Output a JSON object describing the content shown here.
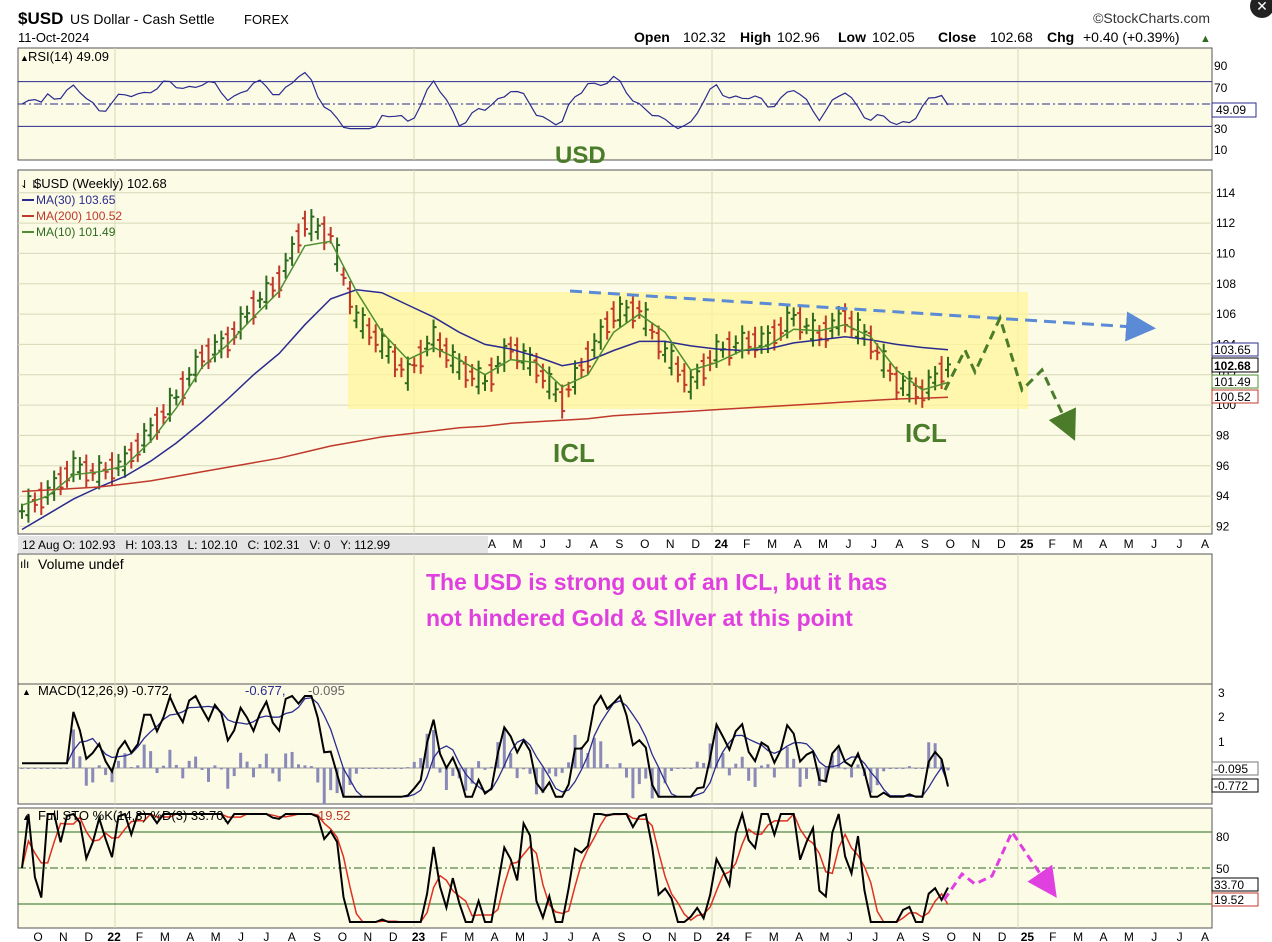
{
  "header": {
    "symbol": "$USD",
    "name": "US Dollar - Cash Settle",
    "exchange": "FOREX",
    "date": "11-Oct-2024",
    "copyright": "©StockCharts.com",
    "open_label": "Open",
    "open": "102.32",
    "high_label": "High",
    "high": "102.96",
    "low_label": "Low",
    "low": "102.05",
    "close_label": "Close",
    "close": "102.68",
    "chg_label": "Chg",
    "chg": "+0.40 (+0.39%)"
  },
  "colors": {
    "panel_bg": "#fbfbe6",
    "grid": "#d8d8b8",
    "up_bar": "#2e6b1f",
    "down_bar": "#c0392b",
    "ma30": "#2b2b8f",
    "ma200": "#c0392b",
    "ma10": "#4f8f2f",
    "box": "#fff69a",
    "annot_green": "#4a7c2a",
    "annot_magenta": "#e040e0",
    "trend_blue": "#5b8ad6"
  },
  "rsi": {
    "legend": "RSI(14) 49.09",
    "value_tag": "49.09",
    "levels": [
      "90",
      "70",
      "30",
      "10"
    ],
    "annotation": "USD"
  },
  "price": {
    "legend_title": "$USD (Weekly) 102.68",
    "ma30_label": "MA(30) 103.65",
    "ma200_label": "MA(200) 100.52",
    "ma10_label": "MA(10) 101.49",
    "y_ticks": [
      "114",
      "112",
      "110",
      "108",
      "106",
      "104",
      "102",
      "100",
      "98",
      "96",
      "94",
      "92"
    ],
    "value_tags": {
      "ma30": "103.65",
      "close": "102.68",
      "ma10": "101.49",
      "ma200": "100.52"
    },
    "icl_left": "ICL",
    "icl_right": "ICL",
    "hover_info": "12 Aug O: 102.93   H: 103.13   L: 102.10   C: 102.31   V: 0   Y: 112.99"
  },
  "x_axis_price": [
    "A",
    "M",
    "J",
    "J",
    "A",
    "S",
    "O",
    "N",
    "D",
    "24",
    "F",
    "M",
    "A",
    "M",
    "J",
    "J",
    "A",
    "S",
    "O",
    "N",
    "D",
    "25",
    "F",
    "M",
    "A",
    "M",
    "J",
    "J",
    "A"
  ],
  "volume": {
    "legend": "Volume undef",
    "note_line1": "The USD is strong out of an ICL, but it has",
    "note_line2": "not hindered Gold & SIlver at this point"
  },
  "macd": {
    "legend_main": "MACD(12,26,9) -0.772,",
    "legend_signal": "-0.677,",
    "legend_hist": "-0.095",
    "y_ticks": [
      "3",
      "2",
      "1"
    ],
    "value_tags": {
      "hist": "-0.095",
      "macd": "-0.772"
    }
  },
  "sto": {
    "legend_main": "Full STO %K(14,3) %D(3) 33.70,",
    "legend_d": "19.52",
    "y_ticks": [
      "80",
      "50"
    ],
    "value_tags": {
      "k": "33.70",
      "d": "19.52"
    }
  },
  "x_axis_bottom": [
    "O",
    "N",
    "D",
    "22",
    "F",
    "M",
    "A",
    "M",
    "J",
    "J",
    "A",
    "S",
    "O",
    "N",
    "D",
    "23",
    "F",
    "M",
    "A",
    "M",
    "J",
    "J",
    "A",
    "S",
    "O",
    "N",
    "D",
    "24",
    "F",
    "M",
    "A",
    "M",
    "J",
    "J",
    "A",
    "S",
    "O",
    "N",
    "D",
    "25",
    "F",
    "M",
    "A",
    "M",
    "J",
    "J",
    "A"
  ],
  "chart_data": {
    "type": "line",
    "title": "$USD US Dollar - Cash Settle FOREX (Weekly)",
    "ylabel": "",
    "ylim": [
      91.5,
      115.5
    ],
    "x": [
      "2021-10",
      "2021-11",
      "2021-12",
      "2022-01",
      "2022-02",
      "2022-03",
      "2022-04",
      "2022-05",
      "2022-06",
      "2022-07",
      "2022-08",
      "2022-09",
      "2022-10",
      "2022-11",
      "2022-12",
      "2023-01",
      "2023-02",
      "2023-03",
      "2023-04",
      "2023-05",
      "2023-06",
      "2023-07",
      "2023-08",
      "2023-09",
      "2023-10",
      "2023-11",
      "2023-12",
      "2024-01",
      "2024-02",
      "2024-03",
      "2024-04",
      "2024-05",
      "2024-06",
      "2024-07",
      "2024-08",
      "2024-09",
      "2024-10"
    ],
    "series": [
      {
        "name": "$USD (Weekly)",
        "values": [
          93.0,
          94.2,
          95.9,
          95.5,
          96.2,
          98.3,
          100.5,
          103.2,
          104.2,
          106.5,
          108.2,
          112.0,
          111.2,
          105.8,
          104.0,
          102.0,
          104.5,
          102.5,
          101.5,
          103.8,
          102.5,
          100.3,
          103.2,
          106.0,
          106.3,
          103.5,
          101.3,
          103.5,
          104.1,
          104.3,
          105.8,
          104.6,
          105.8,
          104.2,
          101.5,
          100.8,
          102.68
        ]
      },
      {
        "name": "MA(30)",
        "values": [
          91.8,
          92.8,
          93.8,
          94.6,
          95.3,
          96.3,
          97.5,
          98.9,
          100.4,
          102.0,
          103.4,
          105.3,
          107.0,
          107.6,
          107.4,
          106.6,
          105.8,
          104.8,
          104.0,
          103.7,
          103.2,
          102.6,
          102.9,
          103.6,
          104.2,
          104.2,
          103.9,
          103.7,
          103.6,
          103.7,
          104.1,
          104.3,
          104.5,
          104.3,
          104.0,
          103.8,
          103.65
        ]
      },
      {
        "name": "MA(200)",
        "values": [
          94.3,
          94.4,
          94.5,
          94.6,
          94.8,
          95.0,
          95.3,
          95.6,
          95.9,
          96.2,
          96.5,
          96.9,
          97.3,
          97.6,
          97.9,
          98.1,
          98.3,
          98.5,
          98.6,
          98.8,
          98.9,
          99.0,
          99.1,
          99.3,
          99.4,
          99.5,
          99.6,
          99.7,
          99.8,
          99.9,
          100.0,
          100.1,
          100.2,
          100.3,
          100.4,
          100.45,
          100.52
        ]
      },
      {
        "name": "MA(10)",
        "values": [
          93.4,
          94.0,
          95.4,
          95.6,
          96.0,
          97.6,
          99.8,
          102.5,
          104.0,
          105.8,
          107.5,
          110.5,
          110.8,
          107.5,
          104.8,
          103.0,
          103.8,
          103.0,
          102.0,
          103.0,
          102.8,
          101.2,
          102.0,
          104.8,
          106.0,
          104.8,
          102.3,
          102.8,
          103.6,
          103.9,
          105.0,
          104.9,
          105.3,
          104.5,
          102.3,
          101.0,
          101.49
        ]
      }
    ],
    "annotations": [
      "USD",
      "ICL",
      "ICL",
      "The USD is strong out of an ICL, but it has not hindered Gold & SIlver at this point"
    ],
    "indicators": {
      "rsi": {
        "current": 49.09,
        "levels": [
          90,
          70,
          30,
          10
        ]
      },
      "macd": {
        "macd": -0.772,
        "signal": -0.677,
        "histogram": -0.095,
        "ylim": [
          -1.5,
          3.5
        ]
      },
      "full_sto": {
        "k": 33.7,
        "d": 19.52,
        "levels": [
          80,
          50,
          20
        ],
        "ylim": [
          0,
          100
        ]
      }
    },
    "grid": true,
    "legend": "top-left"
  }
}
